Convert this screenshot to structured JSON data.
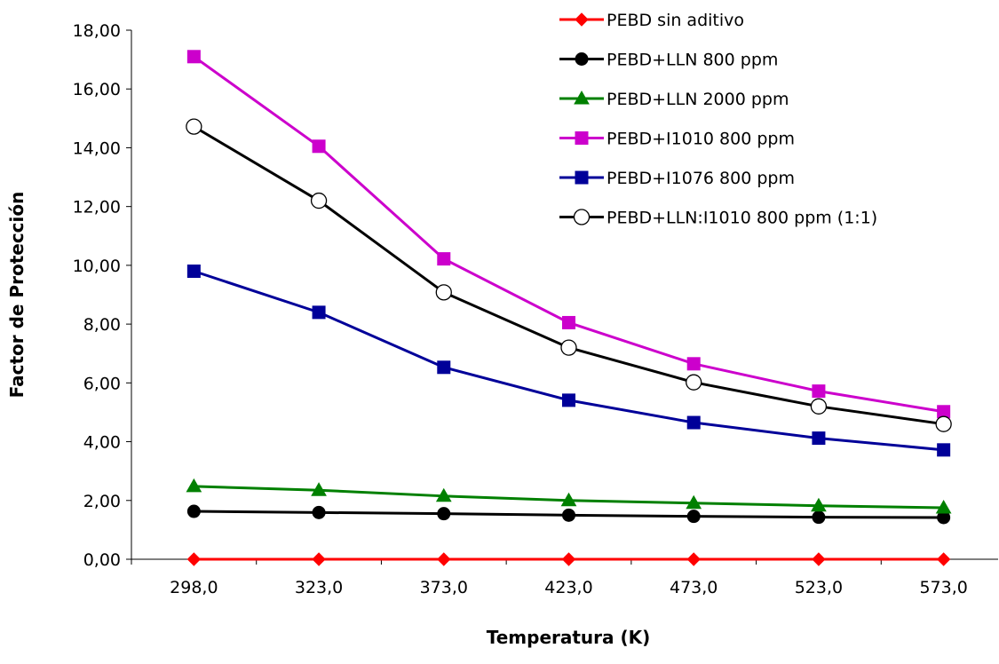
{
  "chart_data": {
    "type": "line",
    "title": "",
    "xlabel": "Temperatura (K)",
    "ylabel": "Factor de Protección",
    "categories": [
      "298,0",
      "323,0",
      "373,0",
      "423,0",
      "473,0",
      "523,0",
      "573,0"
    ],
    "ylim": [
      0,
      18
    ],
    "ytick_labels": [
      "0,00",
      "2,00",
      "4,00",
      "6,00",
      "8,00",
      "10,00",
      "12,00",
      "14,00",
      "16,00",
      "18,00"
    ],
    "grid": false,
    "legend_position": "top-right",
    "series": [
      {
        "name": "PEBD sin aditivo",
        "color": "#ff0000",
        "marker": "diamond",
        "values": [
          0,
          0,
          0,
          0,
          0,
          0,
          0
        ]
      },
      {
        "name": "PEBD+LLN 800 ppm",
        "color": "#000000",
        "marker": "circle",
        "values": [
          1.63,
          1.59,
          1.55,
          1.5,
          1.46,
          1.43,
          1.42
        ]
      },
      {
        "name": "PEBD+LLN 2000 ppm",
        "color": "#008000",
        "marker": "triangle",
        "values": [
          2.48,
          2.35,
          2.15,
          2.0,
          1.91,
          1.82,
          1.75
        ]
      },
      {
        "name": "PEBD+I1010 800 ppm",
        "color": "#cc00cc",
        "marker": "square",
        "values": [
          17.1,
          14.05,
          10.22,
          8.05,
          6.65,
          5.72,
          5.02
        ]
      },
      {
        "name": "PEBD+I1076 800 ppm",
        "color": "#000099",
        "marker": "square",
        "values": [
          9.8,
          8.4,
          6.53,
          5.41,
          4.65,
          4.12,
          3.72
        ]
      },
      {
        "name": "PEBD+LLN:I1010 800 ppm (1:1)",
        "color": "#000000",
        "marker": "open-circle",
        "values": [
          14.72,
          12.2,
          9.08,
          7.2,
          6.02,
          5.2,
          4.6
        ]
      }
    ]
  }
}
